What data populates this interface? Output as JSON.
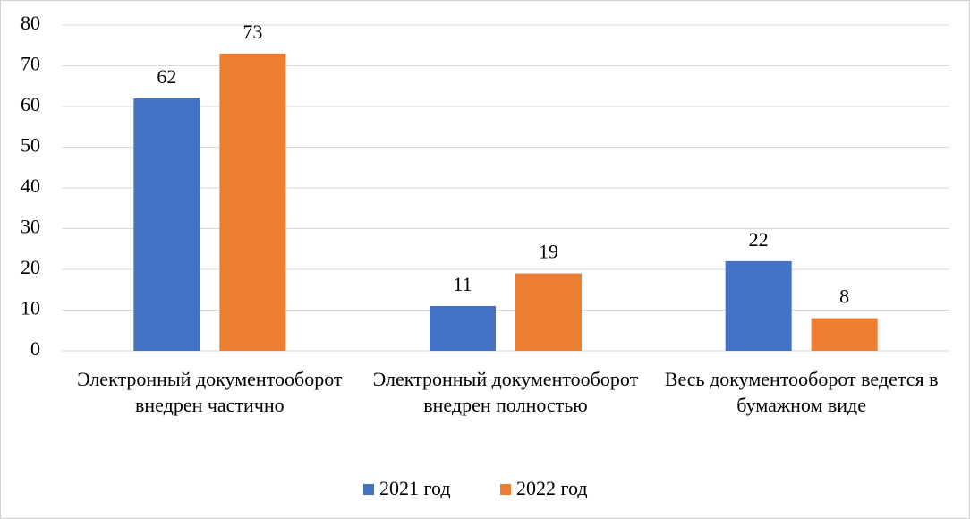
{
  "chart_data": {
    "type": "bar",
    "categories": [
      "Электронный документооборот внедрен частично",
      "Электронный документооборот внедрен полностью",
      "Весь документооборот ведется в бумажном виде"
    ],
    "series": [
      {
        "name": "2021 год",
        "color": "#4472c4",
        "values": [
          62,
          11,
          22
        ]
      },
      {
        "name": "2022 год",
        "color": "#ed7d31",
        "values": [
          73,
          19,
          8
        ]
      }
    ],
    "ylim": [
      0,
      80
    ],
    "yticks": [
      0,
      10,
      20,
      30,
      40,
      50,
      60,
      70,
      80
    ],
    "grid": true,
    "legend": "bottom"
  }
}
